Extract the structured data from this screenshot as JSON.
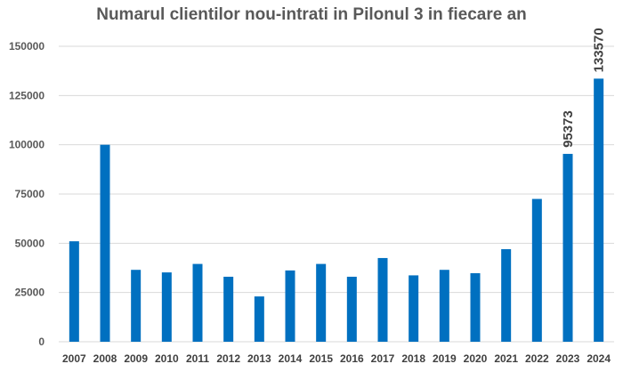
{
  "chart_data": {
    "type": "bar",
    "title": "Numarul clientilor nou-intrati in Pilonul 3 in fiecare an",
    "xlabel": "",
    "ylabel": "",
    "categories": [
      "2007",
      "2008",
      "2009",
      "2010",
      "2011",
      "2012",
      "2013",
      "2014",
      "2015",
      "2016",
      "2017",
      "2018",
      "2019",
      "2020",
      "2021",
      "2022",
      "2023",
      "2024"
    ],
    "values": [
      51000,
      100000,
      36500,
      35200,
      39500,
      33000,
      23000,
      36200,
      39500,
      33000,
      42500,
      33700,
      36500,
      34800,
      47000,
      72500,
      95373,
      133570
    ],
    "data_labels": [
      {
        "category": "2023",
        "text": "95373"
      },
      {
        "category": "2024",
        "text": "133570"
      }
    ],
    "y_ticks": [
      0,
      25000,
      50000,
      75000,
      100000,
      125000,
      150000
    ],
    "y_tick_labels": [
      "0",
      "25000",
      "50000",
      "75000",
      "100000",
      "125000",
      "150000"
    ],
    "ylim": [
      0,
      150000
    ],
    "grid": "horizontal",
    "legend": "none",
    "bar_color": "#0070c0"
  }
}
